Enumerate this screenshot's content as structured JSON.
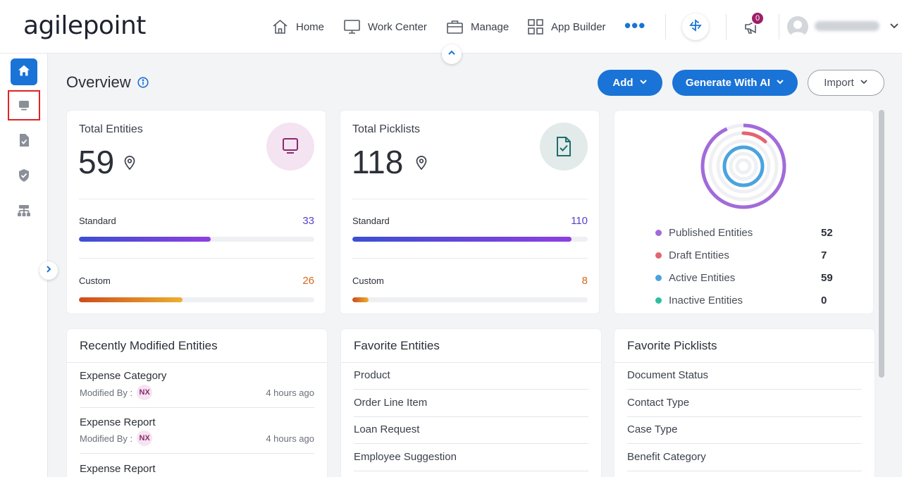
{
  "brand": {
    "logo_text": "agilepoint"
  },
  "nav": {
    "items": [
      {
        "label": "Home",
        "icon": "home-icon"
      },
      {
        "label": "Work Center",
        "icon": "monitor-icon"
      },
      {
        "label": "Manage",
        "icon": "briefcase-icon"
      },
      {
        "label": "App Builder",
        "icon": "grid-icon"
      }
    ],
    "more": "•••",
    "notifications_count": "0"
  },
  "sidebar": {
    "items": [
      {
        "icon": "home-icon",
        "active": true
      },
      {
        "icon": "entity-icon",
        "active": false
      },
      {
        "icon": "picklist-icon",
        "active": false
      },
      {
        "icon": "shield-icon",
        "active": false
      },
      {
        "icon": "hierarchy-icon",
        "active": false
      }
    ]
  },
  "header": {
    "title": "Overview",
    "add_label": "Add",
    "generate_label": "Generate With AI",
    "import_label": "Import"
  },
  "entities_card": {
    "title": "Total Entities",
    "total": "59",
    "standard_label": "Standard",
    "standard_value": "33",
    "custom_label": "Custom",
    "custom_value": "26",
    "standard_fraction": 0.56,
    "custom_fraction": 0.44
  },
  "picklists_card": {
    "title": "Total Picklists",
    "total": "118",
    "standard_label": "Standard",
    "standard_value": "110",
    "custom_label": "Custom",
    "custom_value": "8",
    "standard_fraction": 0.93,
    "custom_fraction": 0.07
  },
  "status_card": {
    "legend": [
      {
        "label": "Published Entities",
        "value": "52",
        "color": "#a26bd9"
      },
      {
        "label": "Draft Entities",
        "value": "7",
        "color": "#e5646f"
      },
      {
        "label": "Active Entities",
        "value": "59",
        "color": "#4aa3df"
      },
      {
        "label": "Inactive Entities",
        "value": "0",
        "color": "#2bbfa0"
      }
    ]
  },
  "recent": {
    "title": "Recently Modified Entities",
    "modified_by_label": "Modified By :",
    "items": [
      {
        "name": "Expense Category",
        "user": "NX",
        "time": "4 hours ago"
      },
      {
        "name": "Expense Report",
        "user": "NX",
        "time": "4 hours ago"
      },
      {
        "name": "Expense Report"
      }
    ]
  },
  "fav_entities": {
    "title": "Favorite Entities",
    "items": [
      "Product",
      "Order Line Item",
      "Loan Request",
      "Employee Suggestion"
    ]
  },
  "fav_picklists": {
    "title": "Favorite Picklists",
    "items": [
      "Document Status",
      "Contact Type",
      "Case Type",
      "Benefit Category"
    ]
  }
}
